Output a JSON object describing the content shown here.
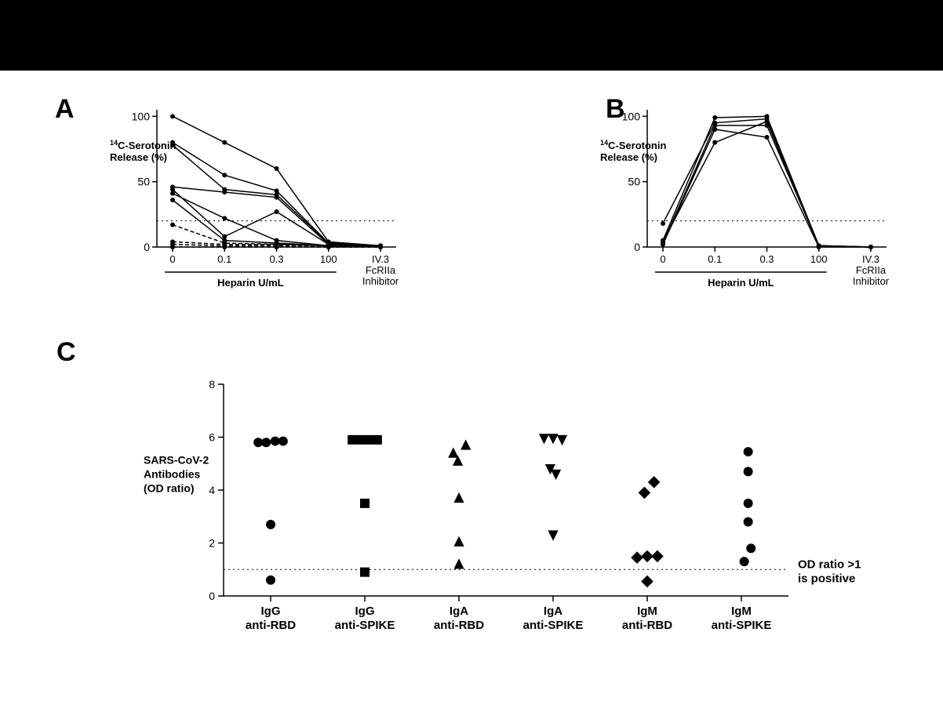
{
  "colors": {
    "background": "#ffffff",
    "axis": "#000000",
    "data": "#000000",
    "header_bar": "#000000"
  },
  "panelA": {
    "label": "A",
    "type": "line",
    "y_title_sup": "14",
    "y_title_line1": "C-Serotonin",
    "y_title_line2": "Release (%)",
    "y_fontsize": 13,
    "yticks": [
      0,
      50,
      100
    ],
    "ylim": [
      0,
      105
    ],
    "x_categories": [
      "0",
      "0.1",
      "0.3",
      "100",
      "IV.3\nFcRIIa\nInhibitor"
    ],
    "x_group_label": "Heparin U/mL",
    "x_group_span": [
      0,
      3
    ],
    "threshold": 20,
    "marker_radius": 3,
    "line_width": 1.5,
    "series_solid": [
      [
        100,
        80,
        60,
        4,
        1
      ],
      [
        80,
        55,
        43,
        3,
        1
      ],
      [
        78,
        44,
        40,
        3,
        1
      ],
      [
        46,
        42,
        38,
        2,
        1
      ],
      [
        41,
        22,
        5,
        1,
        0
      ],
      [
        36,
        5,
        3,
        1,
        0
      ],
      [
        44,
        8,
        27,
        2,
        1
      ]
    ],
    "series_dashed": [
      [
        17,
        3,
        2,
        1,
        1
      ],
      [
        4,
        2,
        2,
        1,
        0
      ],
      [
        2,
        1,
        1,
        0,
        0
      ],
      [
        0,
        0,
        0,
        0,
        0
      ]
    ]
  },
  "panelB": {
    "label": "B",
    "type": "line",
    "y_title_sup": "14",
    "y_title_line1": "C-Serotonin",
    "y_title_line2": "Release (%)",
    "y_fontsize": 13,
    "yticks": [
      0,
      50,
      100
    ],
    "ylim": [
      0,
      105
    ],
    "x_categories": [
      "0",
      "0.1",
      "0.3",
      "100",
      "IV.3\nFcRIIa\nInhibitor"
    ],
    "x_group_label": "Heparin U/mL",
    "x_group_span": [
      0,
      3
    ],
    "threshold": 20,
    "marker_radius": 3,
    "line_width": 1.5,
    "series_solid": [
      [
        5,
        99,
        100,
        1,
        0
      ],
      [
        3,
        93,
        93,
        1,
        0
      ],
      [
        4,
        80,
        96,
        1,
        0
      ],
      [
        2,
        90,
        84,
        0,
        0
      ],
      [
        18,
        95,
        98,
        1,
        0
      ]
    ]
  },
  "panelC": {
    "label": "C",
    "type": "scatter-strip",
    "y_title_line1": "SARS-CoV-2",
    "y_title_line2": "Antibodies",
    "y_title_line3": "(OD ratio)",
    "y_fontsize": 15,
    "yticks": [
      0,
      2,
      4,
      6,
      8
    ],
    "ylim": [
      0,
      8
    ],
    "threshold": 1,
    "threshold_label_line1": "OD ratio >1",
    "threshold_label_line2": "is positive",
    "marker_size": 6,
    "categories": [
      {
        "line1": "IgG",
        "line2": "anti-RBD",
        "marker": "circle",
        "points": [
          5.8,
          5.8,
          5.85,
          5.85,
          2.7,
          0.6
        ],
        "xjitter": [
          -0.22,
          -0.08,
          0.08,
          0.22,
          0.0,
          0.0
        ]
      },
      {
        "line1": "IgG",
        "line2": "anti-SPIKE",
        "marker": "square",
        "points": [
          5.9,
          5.9,
          5.9,
          5.9,
          3.5,
          0.9
        ],
        "xjitter": [
          -0.22,
          -0.08,
          0.08,
          0.22,
          0.0,
          0.0
        ]
      },
      {
        "line1": "IgA",
        "line2": "anti-RBD",
        "marker": "triangle-up",
        "points": [
          5.4,
          5.7,
          5.1,
          3.7,
          2.05,
          1.2
        ],
        "xjitter": [
          -0.1,
          0.12,
          -0.02,
          0.0,
          0.0,
          0.0
        ]
      },
      {
        "line1": "IgA",
        "line2": "anti-SPIKE",
        "marker": "triangle-down",
        "points": [
          5.95,
          5.95,
          5.9,
          4.8,
          4.6,
          2.3
        ],
        "xjitter": [
          -0.16,
          0.0,
          0.16,
          -0.05,
          0.05,
          0.0
        ]
      },
      {
        "line1": "IgM",
        "line2": "anti-RBD",
        "marker": "diamond",
        "points": [
          3.9,
          4.3,
          1.45,
          1.5,
          1.5,
          0.55
        ],
        "xjitter": [
          -0.05,
          0.12,
          -0.18,
          0.0,
          0.18,
          0.0
        ]
      },
      {
        "line1": "IgM",
        "line2": "anti-SPIKE",
        "marker": "circle",
        "points": [
          5.45,
          4.7,
          3.5,
          2.8,
          1.8,
          1.3
        ],
        "xjitter": [
          0.12,
          0.12,
          0.12,
          0.12,
          0.17,
          0.05
        ]
      }
    ]
  }
}
